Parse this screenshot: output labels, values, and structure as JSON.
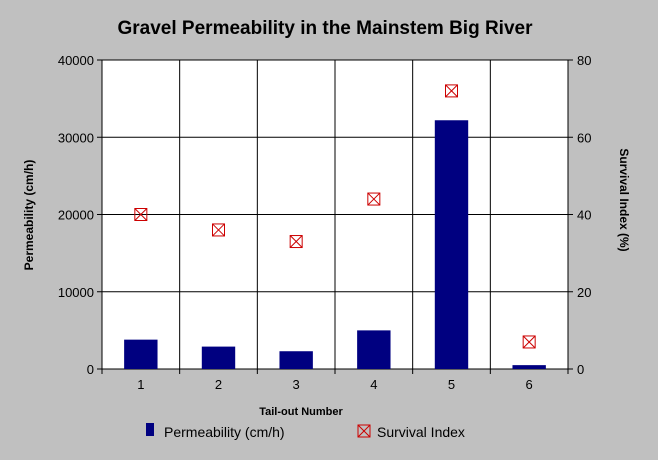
{
  "chart_data": {
    "type": "bar",
    "title": "Gravel Permeability in the Mainstem Big River",
    "xlabel": "Tail-out Number",
    "ylabel": "Permeability (cm/h)",
    "y2label": "Survival Index (%)",
    "categories": [
      "1",
      "2",
      "3",
      "4",
      "5",
      "6"
    ],
    "ylim": [
      0,
      40000
    ],
    "yticks": [
      "0",
      "10000",
      "20000",
      "30000",
      "40000"
    ],
    "y2lim": [
      0,
      80
    ],
    "y2ticks": [
      "0",
      "20",
      "40",
      "60",
      "80"
    ],
    "grid": true,
    "legend_position": "bottom",
    "series": [
      {
        "name": "Permeability (cm/h)",
        "kind": "bar",
        "axis": "left",
        "color": "#000080",
        "values": [
          3800,
          2900,
          2300,
          5000,
          32200,
          500
        ]
      },
      {
        "name": "Survival Index",
        "kind": "marker",
        "axis": "right",
        "color": "#cc0000",
        "values": [
          40,
          36,
          33,
          44,
          72,
          7
        ]
      }
    ]
  }
}
